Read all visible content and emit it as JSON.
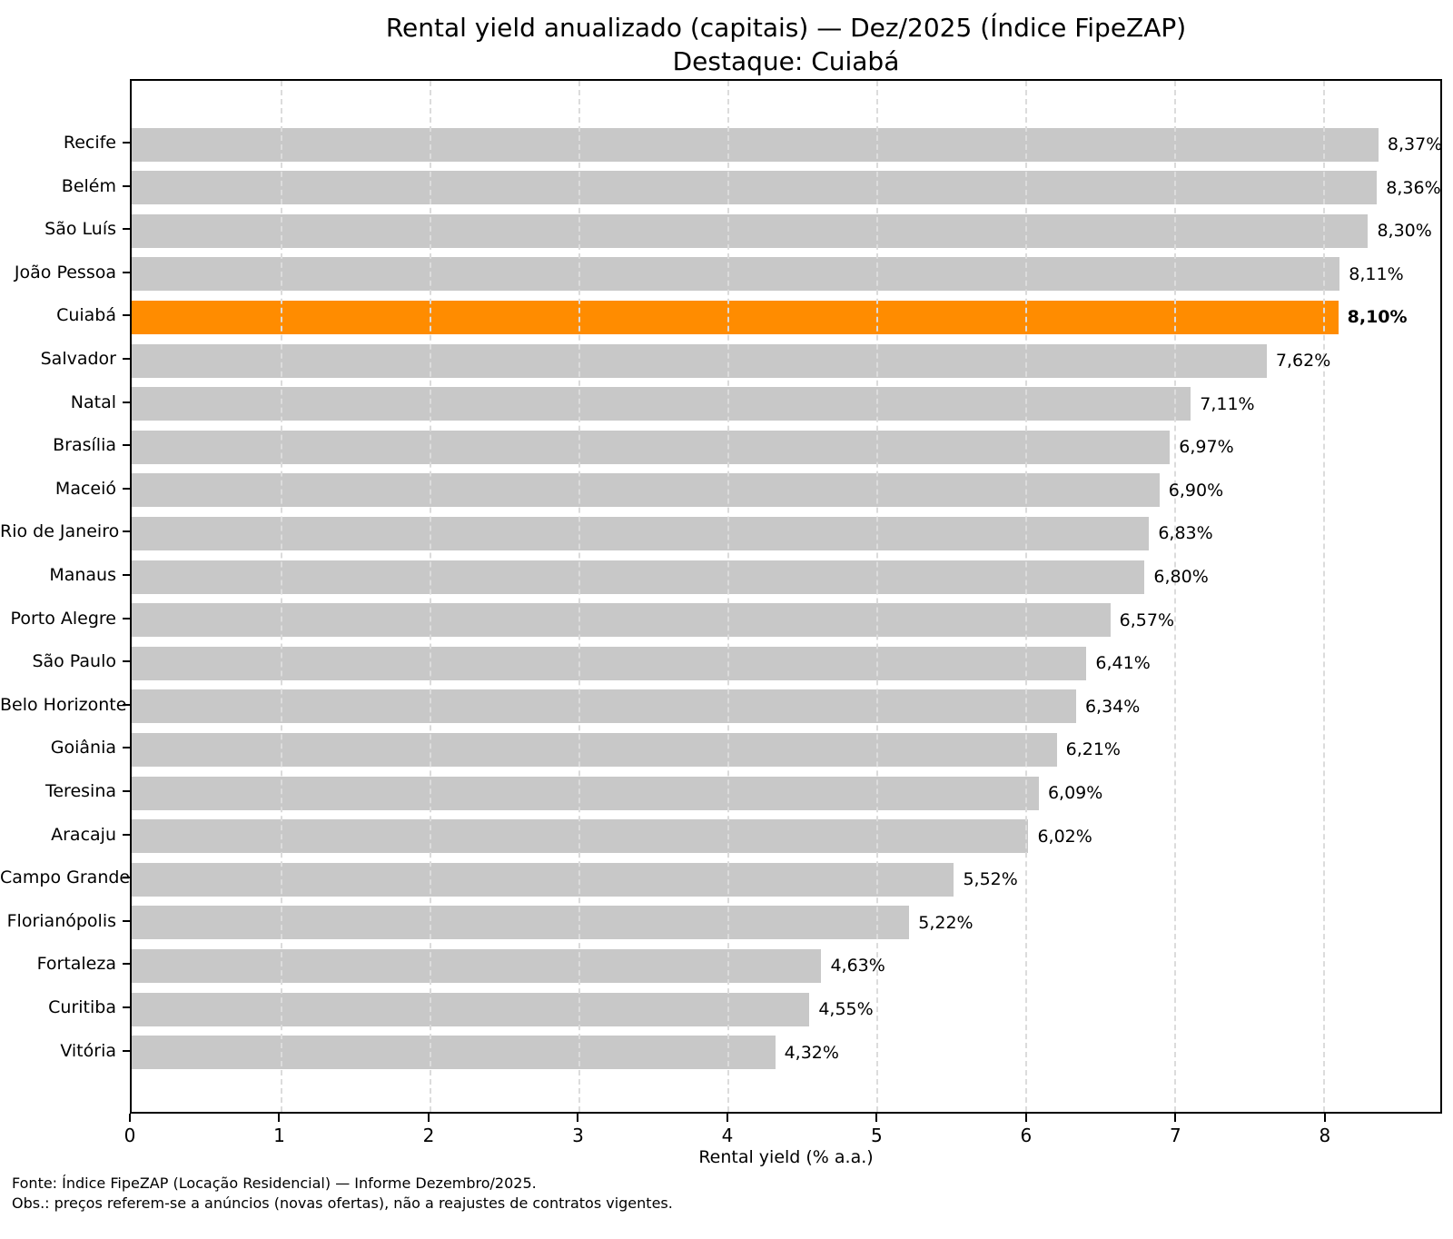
{
  "title": "Rental yield anualizado (capitais) — Dez/2025 (Índice FipeZAP)",
  "subtitle": "Destaque: Cuiabá",
  "chart_data": {
    "type": "bar",
    "orientation": "horizontal",
    "title": "Rental yield anualizado (capitais) — Dez/2025 (Índice FipeZAP)",
    "subtitle": "Destaque: Cuiabá",
    "categories": [
      "Recife",
      "Belém",
      "São Luís",
      "João Pessoa",
      "Cuiabá",
      "Salvador",
      "Natal",
      "Brasília",
      "Maceió",
      "Rio de Janeiro",
      "Manaus",
      "Porto Alegre",
      "São Paulo",
      "Belo Horizonte",
      "Goiânia",
      "Teresina",
      "Aracaju",
      "Campo Grande",
      "Florianópolis",
      "Fortaleza",
      "Curitiba",
      "Vitória"
    ],
    "values": [
      8.37,
      8.36,
      8.3,
      8.11,
      8.1,
      7.62,
      7.11,
      6.97,
      6.9,
      6.83,
      6.8,
      6.57,
      6.41,
      6.34,
      6.21,
      6.09,
      6.02,
      5.52,
      5.22,
      4.63,
      4.55,
      4.32
    ],
    "value_labels": [
      "8,37%",
      "8,36%",
      "8,30%",
      "8,11%",
      "8,10%",
      "7,62%",
      "7,11%",
      "6,97%",
      "6,90%",
      "6,83%",
      "6,80%",
      "6,57%",
      "6,41%",
      "6,34%",
      "6,21%",
      "6,09%",
      "6,02%",
      "5,52%",
      "5,22%",
      "4,63%",
      "4,55%",
      "4,32%"
    ],
    "highlight_category": "Cuiabá",
    "highlight_index": 4,
    "bar_color": "#c8c8c8",
    "highlight_color": "#ff8c00",
    "grid_color": "#dcdcdc",
    "grid_style": "dashed-vertical",
    "xlabel": "Rental yield (% a.a.)",
    "xlim": [
      0,
      8.785
    ],
    "xticks": [
      0,
      1,
      2,
      3,
      4,
      5,
      6,
      7,
      8
    ]
  },
  "xlabel": "Rental yield (% a.a.)",
  "footer": {
    "line1": "Fonte: Índice FipeZAP (Locação Residencial) — Informe Dezembro/2025.",
    "line2": "Obs.: preços referem-se a anúncios (novas ofertas), não a reajustes de contratos vigentes."
  }
}
